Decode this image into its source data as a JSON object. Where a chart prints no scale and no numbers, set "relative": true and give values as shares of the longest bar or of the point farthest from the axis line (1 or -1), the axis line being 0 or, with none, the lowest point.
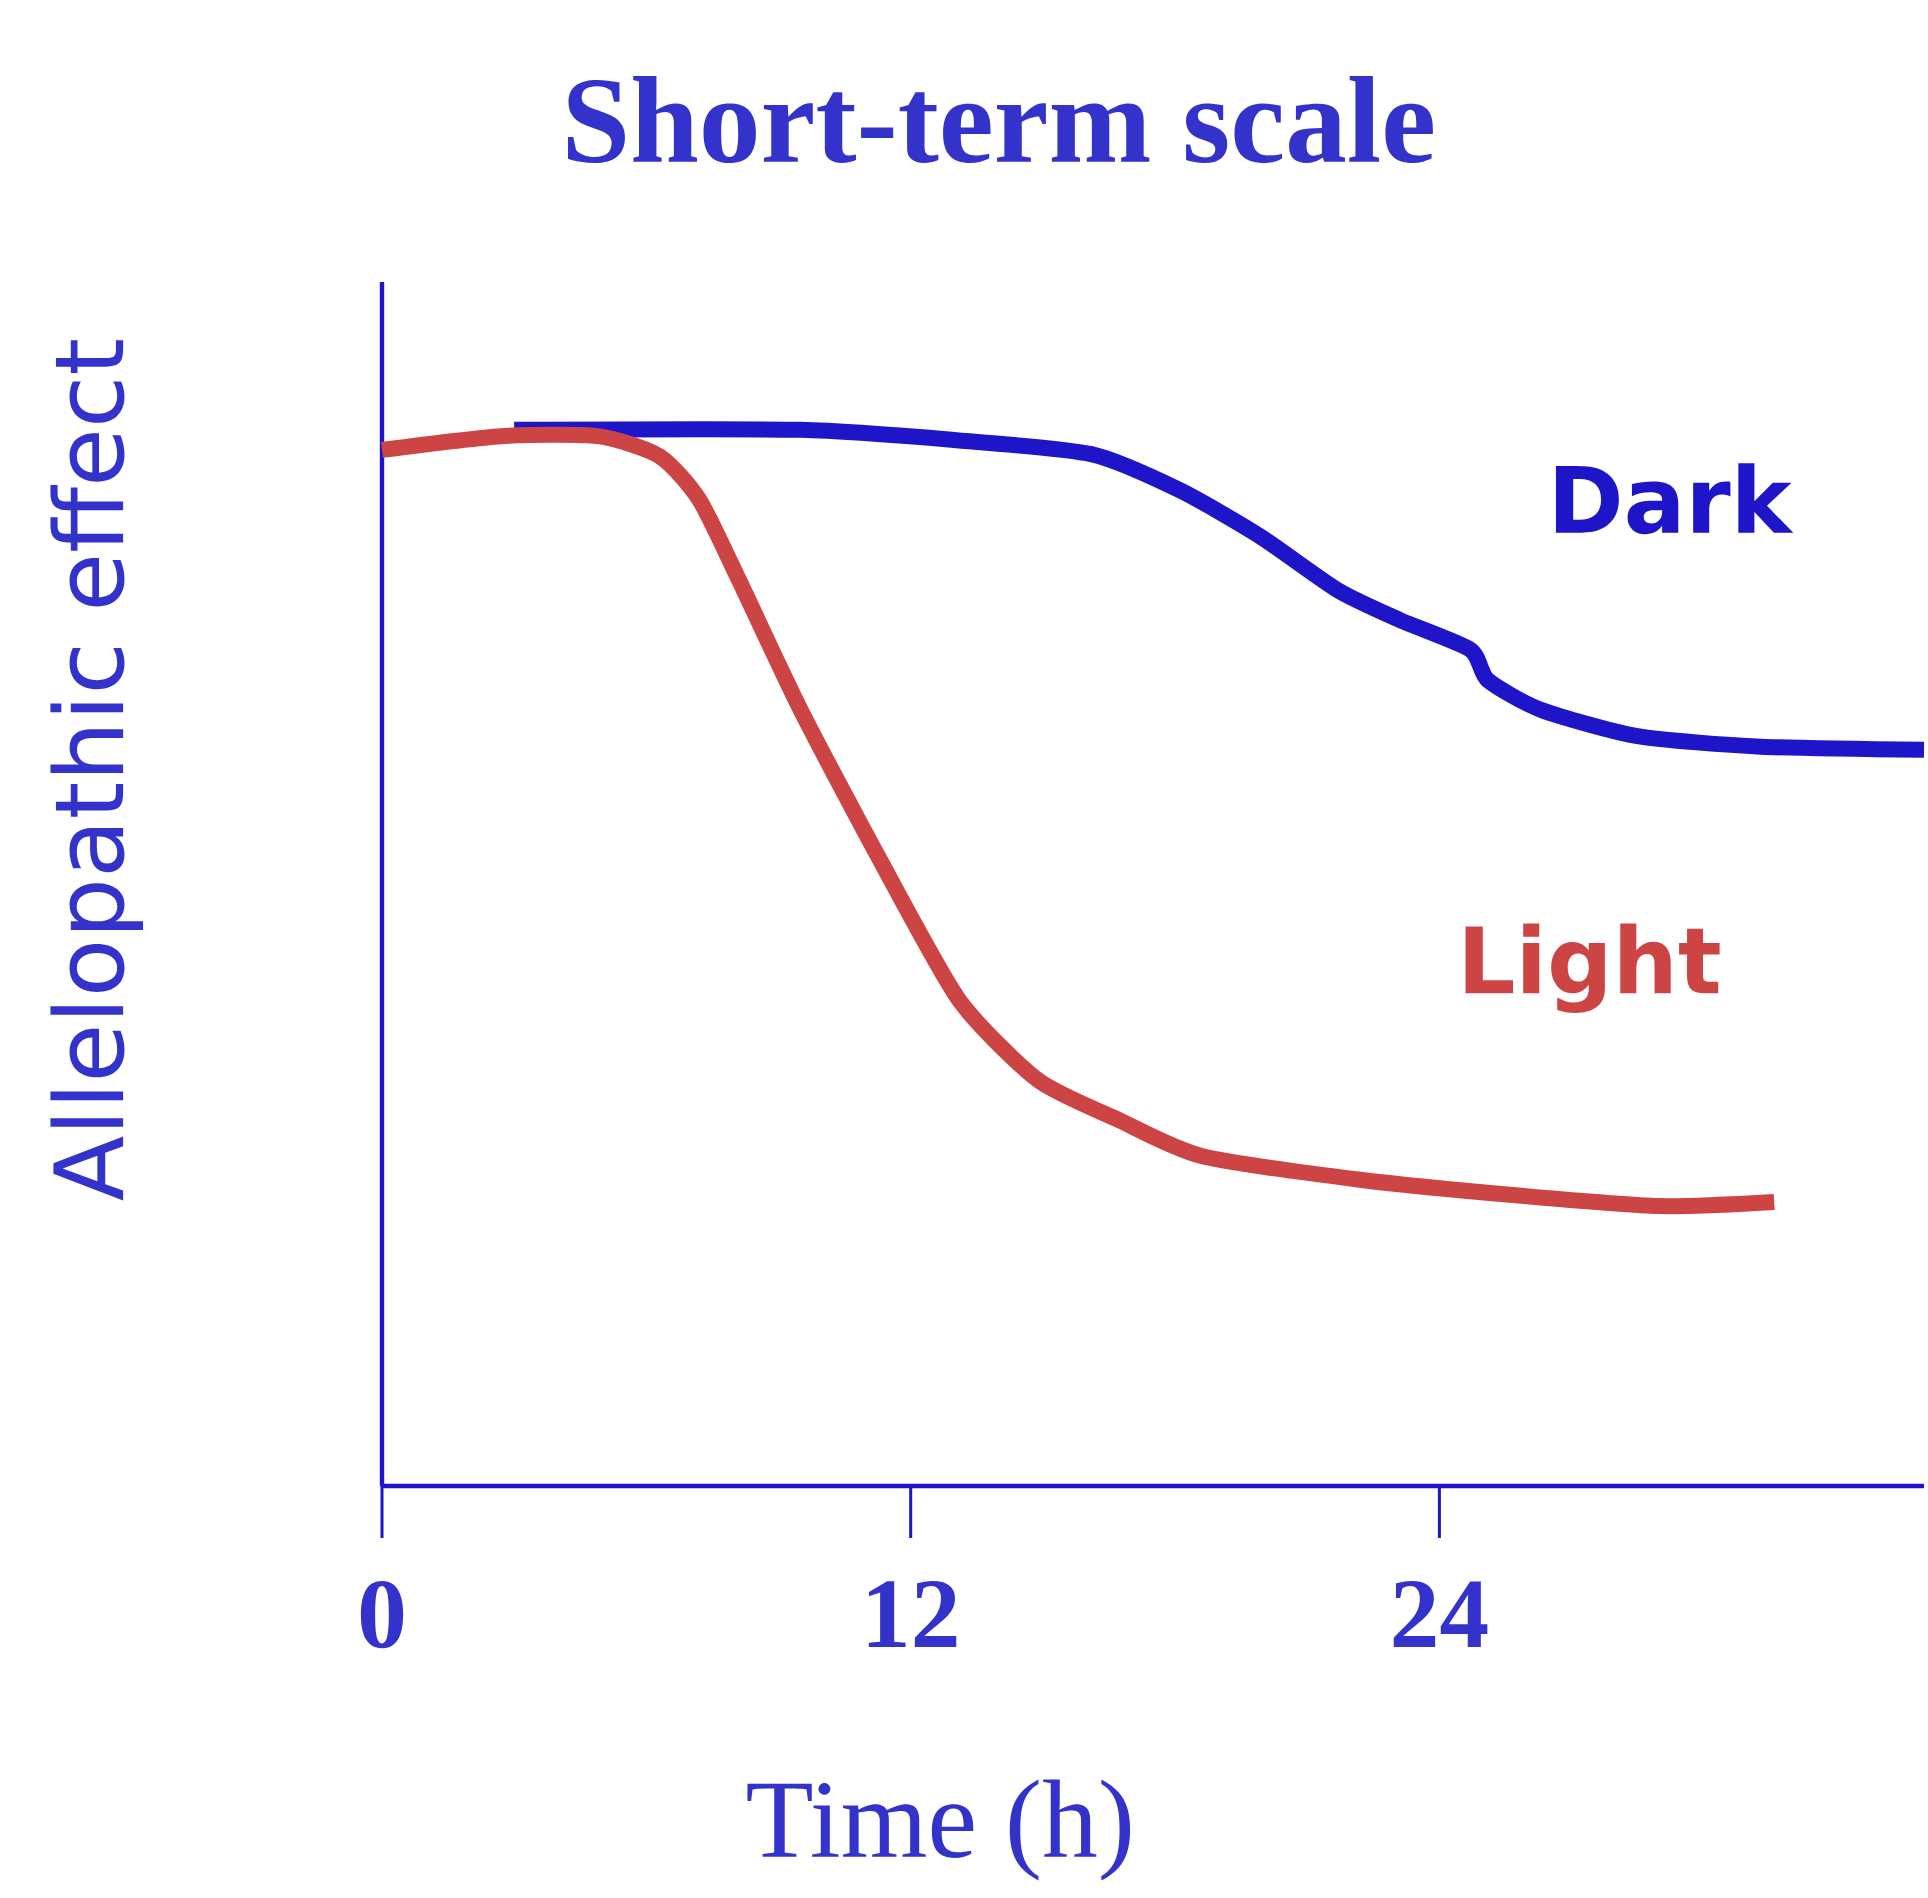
{
  "chart_data": {
    "type": "line",
    "title": "Short-term scale",
    "xlabel": "Time (h)",
    "ylabel": "Allelopathic effect",
    "relative": true,
    "xlim": [
      0,
      35
    ],
    "xticks": [
      0,
      12,
      24
    ],
    "grid": false,
    "marker": "none",
    "line_style": "solid",
    "series": [
      {
        "name": "Dark",
        "color": "#1e14c8",
        "x": [
          3.0,
          9.5,
          13.1,
          16.1,
          18.1,
          19.9,
          21.7,
          23.1,
          24.7,
          25.1,
          26.3,
          28.5,
          31.3,
          35.0
        ],
        "values": [
          1.0,
          1.0,
          0.99,
          0.977,
          0.943,
          0.9,
          0.848,
          0.82,
          0.792,
          0.763,
          0.735,
          0.71,
          0.7,
          0.697
        ]
      },
      {
        "name": "Light",
        "color": "#cc4444",
        "x": [
          0,
          2.7,
          4.9,
          6.3,
          7.2,
          8.1,
          9.5,
          11.3,
          13.1,
          14.9,
          16.7,
          18.6,
          22.2,
          25.8,
          29.0,
          31.6
        ],
        "values": [
          0.981,
          0.994,
          0.994,
          0.975,
          0.934,
          0.858,
          0.735,
          0.593,
          0.46,
          0.384,
          0.347,
          0.3125,
          0.29,
          0.275,
          0.265,
          0.269
        ]
      }
    ]
  }
}
